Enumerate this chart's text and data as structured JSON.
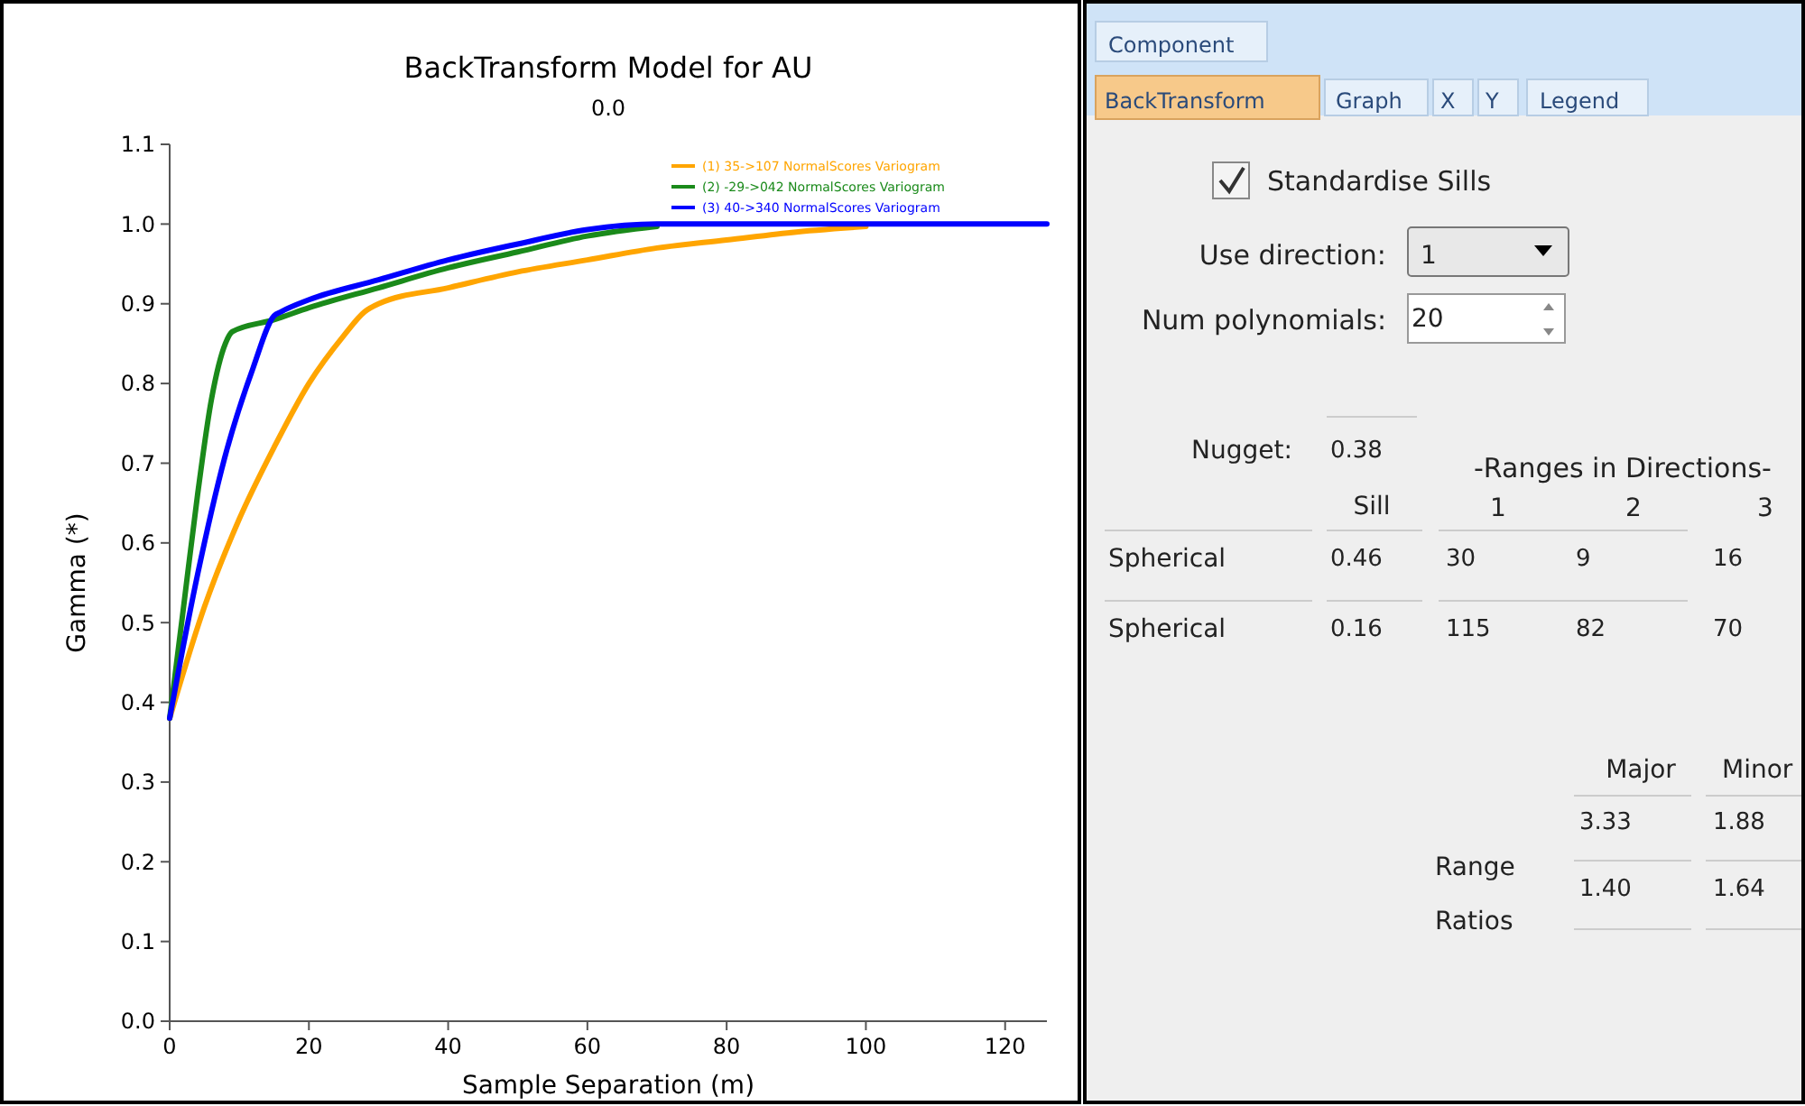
{
  "chart_data": [
    {
      "type": "line",
      "title": "BackTransform Model for AU",
      "subtitle": "0.0",
      "xlabel": "Sample Separation (m)",
      "ylabel": "Gamma (*)",
      "xlim": [
        0,
        126
      ],
      "ylim": [
        0,
        1.1
      ],
      "xticks": [
        0,
        20,
        40,
        60,
        80,
        100,
        120
      ],
      "yticks": [
        {
          "value": 0,
          "label": "0.0"
        },
        0.1,
        0.2,
        0.3,
        0.4,
        0.5,
        0.6,
        0.7,
        0.8,
        0.9,
        {
          "value": 1,
          "label": "1.0"
        },
        1.1
      ],
      "legend": "top right",
      "marker": "none",
      "line_style": "solid",
      "series": [
        {
          "name": "(1) 35->107 NormalScores Variogram",
          "color": "#ffa500",
          "x": [
            0,
            5,
            10,
            15,
            20,
            25,
            28,
            30,
            40,
            50,
            60,
            70,
            80,
            90,
            100
          ],
          "values": [
            0.38,
            0.52,
            0.63,
            0.72,
            0.8,
            0.86,
            0.89,
            0.9,
            0.92,
            0.94,
            0.955,
            0.97,
            0.98,
            0.99,
            0.997
          ]
        },
        {
          "name": "(2) -29->042 NormalScores Variogram",
          "color": "#1a8a1a",
          "x": [
            0,
            2,
            4,
            6,
            8,
            9,
            15,
            20,
            30,
            40,
            50,
            60,
            70
          ],
          "values": [
            0.38,
            0.52,
            0.66,
            0.78,
            0.85,
            0.865,
            0.88,
            0.895,
            0.92,
            0.945,
            0.965,
            0.985,
            0.997
          ]
        },
        {
          "name": "(3) 40->340 NormalScores Variogram",
          "color": "#0000ff",
          "x": [
            0,
            4,
            8,
            12,
            15,
            16,
            20,
            30,
            40,
            50,
            60,
            70,
            126
          ],
          "values": [
            0.38,
            0.56,
            0.71,
            0.82,
            0.885,
            0.89,
            0.905,
            0.93,
            0.955,
            0.975,
            0.993,
            1.0,
            1.0
          ]
        }
      ]
    },
    {
      "type": "other",
      "annotations": [
        "Component",
        "BackTransform",
        "Graph",
        "X",
        "Y",
        "Legend",
        "Standardise Sills",
        "Use direction:",
        "1",
        "Num polynomials:",
        "20",
        "Nugget:",
        "0.38",
        "-Ranges in Directions-",
        "Sill",
        "1",
        "2",
        "3",
        "Spherical",
        "0.46",
        "30",
        "9",
        "16",
        "Spherical",
        "0.16",
        "115",
        "82",
        "70",
        "Major",
        "Minor",
        "3.33",
        "1.88",
        "Range",
        "Ratios",
        "1.40",
        "1.64"
      ]
    }
  ]
}
